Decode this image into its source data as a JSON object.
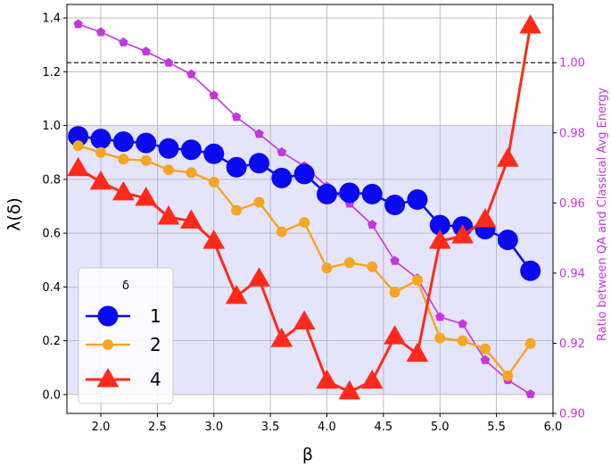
{
  "chart_data": {
    "type": "line",
    "xlabel": "β",
    "ylabel": "λ(δ)",
    "y2label": "Ratio between QA and Classical Avg Energy",
    "xlim": [
      1.7,
      6.0
    ],
    "ylim": [
      -0.07,
      1.45
    ],
    "y2lim": [
      0.9,
      1.0166
    ],
    "x_ticks": [
      2.0,
      2.5,
      3.0,
      3.5,
      4.0,
      4.5,
      5.0,
      5.5,
      6.0
    ],
    "y_ticks": [
      0.0,
      0.2,
      0.4,
      0.6,
      0.8,
      1.0,
      1.2,
      1.4
    ],
    "y2_ticks": [
      0.9,
      0.92,
      0.94,
      0.96,
      0.98,
      1.0
    ],
    "grid": true,
    "shaded_band": {
      "y_from": 0.0,
      "y_to": 1.0,
      "color": "#e4e4fb"
    },
    "reference_line": {
      "axis": "y2",
      "value": 1.0,
      "style": "dashed",
      "color": "#000000"
    },
    "legend": {
      "title": "δ",
      "placement": "lower-left"
    },
    "series": [
      {
        "name": "1",
        "axis": "y",
        "color": "#0a0af0",
        "marker": "circle",
        "x": [
          1.8,
          2.0,
          2.2,
          2.4,
          2.6,
          2.8,
          3.0,
          3.2,
          3.4,
          3.6,
          3.8,
          4.0,
          4.2,
          4.4,
          4.6,
          4.8,
          5.0,
          5.2,
          5.4,
          5.6,
          5.8
        ],
        "values": [
          0.96,
          0.95,
          0.94,
          0.935,
          0.915,
          0.91,
          0.895,
          0.845,
          0.86,
          0.805,
          0.82,
          0.745,
          0.75,
          0.745,
          0.705,
          0.725,
          0.63,
          0.625,
          0.615,
          0.575,
          0.46
        ]
      },
      {
        "name": "2",
        "axis": "y",
        "color": "#f5a623",
        "marker": "circle",
        "x": [
          1.8,
          2.0,
          2.2,
          2.4,
          2.6,
          2.8,
          3.0,
          3.2,
          3.4,
          3.6,
          3.8,
          4.0,
          4.2,
          4.4,
          4.6,
          4.8,
          5.0,
          5.2,
          5.4,
          5.6,
          5.8
        ],
        "values": [
          0.925,
          0.9,
          0.875,
          0.87,
          0.835,
          0.825,
          0.79,
          0.685,
          0.715,
          0.605,
          0.64,
          0.47,
          0.49,
          0.475,
          0.38,
          0.425,
          0.21,
          0.2,
          0.17,
          0.07,
          0.19
        ]
      },
      {
        "name": "4",
        "axis": "y",
        "color": "#ff2a1a",
        "marker": "triangle",
        "x": [
          1.8,
          2.0,
          2.2,
          2.4,
          2.6,
          2.8,
          3.0,
          3.2,
          3.4,
          3.6,
          3.8,
          4.0,
          4.2,
          4.4,
          4.6,
          4.8,
          5.0,
          5.2,
          5.4,
          5.6,
          5.8
        ],
        "values": [
          0.84,
          0.79,
          0.75,
          0.73,
          0.66,
          0.645,
          0.57,
          0.365,
          0.43,
          0.205,
          0.27,
          0.05,
          0.01,
          0.05,
          0.215,
          0.15,
          0.57,
          0.59,
          0.65,
          0.875,
          1.37
        ]
      },
      {
        "name": "",
        "axis": "y2",
        "color": "#c535e0",
        "marker": "pentagon",
        "x": [
          1.8,
          2.0,
          2.2,
          2.4,
          2.6,
          2.8,
          3.0,
          3.2,
          3.4,
          3.6,
          3.8,
          4.0,
          4.2,
          4.4,
          4.6,
          4.8,
          5.0,
          5.2,
          5.4,
          5.6,
          5.8
        ],
        "values": [
          1.011,
          1.0087,
          1.0058,
          1.0032,
          1.0,
          0.9967,
          0.9907,
          0.9845,
          0.9797,
          0.9745,
          0.9705,
          0.9647,
          0.9598,
          0.9538,
          0.9435,
          0.9385,
          0.9275,
          0.9255,
          0.9152,
          0.9095,
          0.9055
        ]
      }
    ]
  }
}
